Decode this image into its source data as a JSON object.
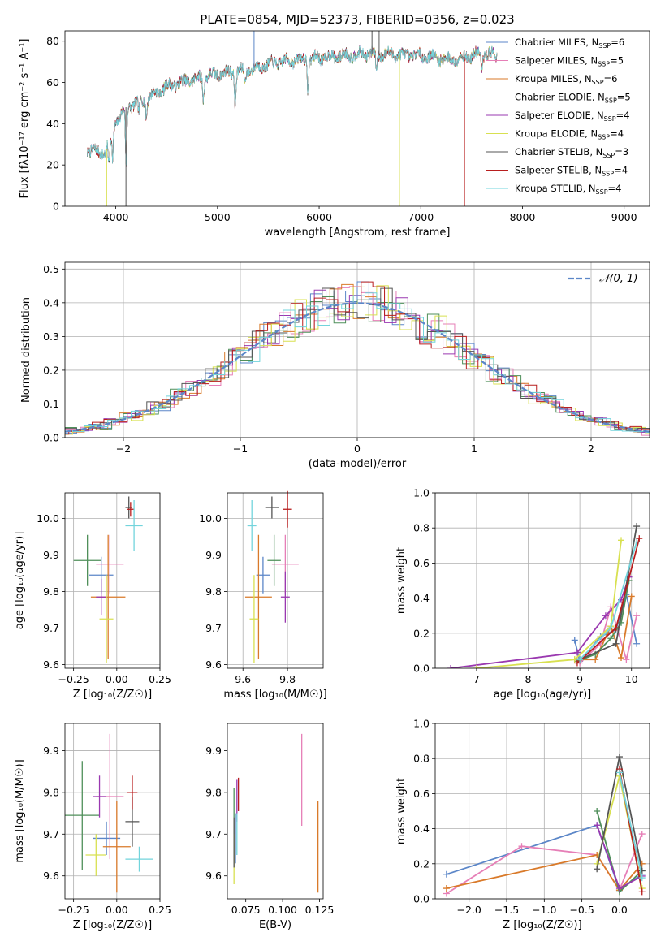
{
  "chart_data": [
    {
      "id": "spectrum",
      "type": "line",
      "title": "PLATE=0854, MJD=52373, FIBERID=0356, z=0.023",
      "xlabel": "wavelength [Angstrom, rest frame]",
      "ylabel": "Flux [fλ10⁻¹⁷ erg cm⁻² s⁻¹ A⁻¹]",
      "xlim": [
        3500,
        9250
      ],
      "ylim": [
        0,
        85
      ],
      "xticks": [
        4000,
        5000,
        6000,
        7000,
        8000,
        9000
      ],
      "yticks": [
        0,
        20,
        40,
        60,
        80
      ],
      "grid": false,
      "legend_position": "top-right",
      "continuum_anchors": [
        [
          3720,
          27
        ],
        [
          3900,
          26
        ],
        [
          3990,
          40
        ],
        [
          4100,
          48
        ],
        [
          4300,
          52
        ],
        [
          4500,
          58
        ],
        [
          4800,
          62
        ],
        [
          5000,
          64
        ],
        [
          5300,
          66
        ],
        [
          5600,
          70
        ],
        [
          6000,
          72
        ],
        [
          6500,
          74
        ],
        [
          7000,
          73
        ],
        [
          7300,
          71
        ],
        [
          7600,
          74
        ],
        [
          8000,
          72
        ],
        [
          8500,
          70
        ],
        [
          9000,
          68
        ],
        [
          9200,
          66
        ]
      ],
      "absorption_lines": [
        [
          3934,
          12
        ],
        [
          3969,
          14
        ],
        [
          4102,
          30
        ],
        [
          4227,
          6
        ],
        [
          4300,
          8
        ],
        [
          4861,
          10
        ],
        [
          5175,
          16
        ],
        [
          5270,
          6
        ],
        [
          5890,
          14
        ],
        [
          6563,
          8
        ],
        [
          7600,
          8
        ],
        [
          8542,
          12
        ]
      ],
      "series": [
        {
          "name": "Chabrier MILES, N",
          "sub": "SSP",
          "suffix": "=6",
          "color": "#5b86c8"
        },
        {
          "name": "Salpeter MILES, N",
          "sub": "SSP",
          "suffix": "=5",
          "color": "#e67fb7"
        },
        {
          "name": "Kroupa MILES, N",
          "sub": "SSP",
          "suffix": "=6",
          "color": "#d97a2a"
        },
        {
          "name": "Chabrier ELODIE, N",
          "sub": "SSP",
          "suffix": "=5",
          "color": "#4f8f5a"
        },
        {
          "name": "Salpeter ELODIE, N",
          "sub": "SSP",
          "suffix": "=4",
          "color": "#9a38b0"
        },
        {
          "name": "Kroupa ELODIE, N",
          "sub": "SSP",
          "suffix": "=4",
          "color": "#d8e050"
        },
        {
          "name": "Chabrier STELIB, N",
          "sub": "SSP",
          "suffix": "=3",
          "color": "#555555"
        },
        {
          "name": "Salpeter STELIB, N",
          "sub": "SSP",
          "suffix": "=4",
          "color": "#b81e1e"
        },
        {
          "name": "Kroupa STELIB, N",
          "sub": "SSP",
          "suffix": "=4",
          "color": "#72d4dc"
        }
      ]
    },
    {
      "id": "residuals",
      "type": "bar",
      "xlabel": "(data-model)/error",
      "ylabel": "Normed distribution",
      "xlim": [
        -2.5,
        2.5
      ],
      "ylim": [
        0,
        0.52
      ],
      "xticks": [
        -2,
        -1,
        0,
        1,
        2
      ],
      "yticks": [
        0.0,
        0.1,
        0.2,
        0.3,
        0.4,
        0.5
      ],
      "grid": true,
      "bin_width": 0.1,
      "legend": "𝒩(0, 1)",
      "legend_position": "top-right",
      "model_color": "#5b86c8"
    },
    {
      "id": "z_vs_age",
      "type": "scatter",
      "xlabel": "Z [log₁₀(Z/Z☉)]",
      "ylabel": "age  [log₁₀(age/yr)]",
      "xlim": [
        -0.3,
        0.25
      ],
      "ylim": [
        9.59,
        10.07
      ],
      "xticks": [
        -0.25,
        0.0,
        0.25
      ],
      "yticks": [
        9.6,
        9.7,
        9.8,
        9.9,
        10.0
      ],
      "grid": true,
      "points": [
        {
          "x": -0.09,
          "y": 9.845,
          "xerr": 0.07,
          "yerr": 0.05,
          "color": "#5b86c8"
        },
        {
          "x": -0.04,
          "y": 9.875,
          "xerr": 0.08,
          "yerr": 0.08,
          "color": "#e67fb7"
        },
        {
          "x": -0.05,
          "y": 9.785,
          "xerr": 0.1,
          "yerr": 0.17,
          "color": "#d97a2a"
        },
        {
          "x": -0.17,
          "y": 9.885,
          "xerr": 0.08,
          "yerr": 0.07,
          "color": "#4f8f5a"
        },
        {
          "x": -0.09,
          "y": 9.785,
          "xerr": 0.03,
          "yerr": 0.05,
          "color": "#9a38b0"
        },
        {
          "x": -0.06,
          "y": 9.725,
          "xerr": 0.04,
          "yerr": 0.12,
          "color": "#d8e050"
        },
        {
          "x": 0.07,
          "y": 10.03,
          "xerr": 0.02,
          "yerr": 0.03,
          "color": "#555555"
        },
        {
          "x": 0.08,
          "y": 10.025,
          "xerr": 0.02,
          "yerr": 0.02,
          "color": "#b81e1e"
        },
        {
          "x": 0.1,
          "y": 9.98,
          "xerr": 0.05,
          "yerr": 0.07,
          "color": "#72d4dc"
        }
      ]
    },
    {
      "id": "mass_vs_age",
      "type": "scatter",
      "xlabel": "mass [log₁₀(M/M☉)]",
      "ylabel": "",
      "xlim": [
        9.53,
        9.96
      ],
      "ylim": [
        9.59,
        10.07
      ],
      "xticks": [
        9.6,
        9.8
      ],
      "yticks": [
        9.6,
        9.7,
        9.8,
        9.9,
        10.0
      ],
      "grid": true,
      "points": [
        {
          "x": 9.69,
          "y": 9.845,
          "xerr": 0.03,
          "yerr": 0.05,
          "color": "#5b86c8"
        },
        {
          "x": 9.79,
          "y": 9.875,
          "xerr": 0.06,
          "yerr": 0.08,
          "color": "#e67fb7"
        },
        {
          "x": 9.67,
          "y": 9.785,
          "xerr": 0.06,
          "yerr": 0.17,
          "color": "#d97a2a"
        },
        {
          "x": 9.74,
          "y": 9.885,
          "xerr": 0.03,
          "yerr": 0.07,
          "color": "#4f8f5a"
        },
        {
          "x": 9.79,
          "y": 9.785,
          "xerr": 0.02,
          "yerr": 0.07,
          "color": "#9a38b0"
        },
        {
          "x": 9.65,
          "y": 9.725,
          "xerr": 0.02,
          "yerr": 0.12,
          "color": "#d8e050"
        },
        {
          "x": 9.73,
          "y": 10.03,
          "xerr": 0.03,
          "yerr": 0.03,
          "color": "#555555"
        },
        {
          "x": 9.8,
          "y": 10.025,
          "xerr": 0.02,
          "yerr": 0.05,
          "color": "#b81e1e"
        },
        {
          "x": 9.64,
          "y": 9.98,
          "xerr": 0.02,
          "yerr": 0.07,
          "color": "#72d4dc"
        }
      ]
    },
    {
      "id": "age_weights",
      "type": "line",
      "xlabel": "age  [log₁₀(age/yr)]",
      "ylabel": "mass weight",
      "xlim": [
        6.2,
        10.35
      ],
      "ylim": [
        0,
        1.0
      ],
      "xticks": [
        7,
        8,
        9,
        10
      ],
      "yticks": [
        0.0,
        0.2,
        0.4,
        0.6,
        0.8,
        1.0
      ],
      "grid": true,
      "series": [
        {
          "color": "#5b86c8",
          "x": [
            8.9,
            9.0,
            9.4,
            9.7,
            9.9,
            10.1
          ],
          "y": [
            0.16,
            0.04,
            0.18,
            0.22,
            0.42,
            0.14
          ]
        },
        {
          "color": "#e67fb7",
          "x": [
            9.0,
            9.4,
            9.6,
            9.9,
            10.1
          ],
          "y": [
            0.03,
            0.14,
            0.35,
            0.05,
            0.3
          ]
        },
        {
          "color": "#d97a2a",
          "x": [
            8.9,
            9.3,
            9.6,
            9.8,
            10.0
          ],
          "y": [
            0.05,
            0.05,
            0.24,
            0.06,
            0.41
          ]
        },
        {
          "color": "#4f8f5a",
          "x": [
            8.95,
            9.3,
            9.6,
            9.8,
            9.95
          ],
          "y": [
            0.04,
            0.08,
            0.17,
            0.26,
            0.5
          ]
        },
        {
          "color": "#9a38b0",
          "x": [
            6.5,
            8.95,
            9.5,
            9.8,
            9.95
          ],
          "y": [
            0.0,
            0.09,
            0.3,
            0.39,
            0.52
          ]
        },
        {
          "color": "#d8e050",
          "x": [
            7.0,
            8.9,
            9.6,
            9.8
          ],
          "y": [
            0.0,
            0.05,
            0.24,
            0.73
          ]
        },
        {
          "color": "#555555",
          "x": [
            9.0,
            9.7,
            10.1
          ],
          "y": [
            0.05,
            0.14,
            0.81
          ]
        },
        {
          "color": "#b81e1e",
          "x": [
            8.95,
            9.7,
            10.15
          ],
          "y": [
            0.03,
            0.23,
            0.74
          ]
        },
        {
          "color": "#72d4dc",
          "x": [
            9.0,
            9.6,
            10.1
          ],
          "y": [
            0.05,
            0.23,
            0.72
          ]
        }
      ]
    },
    {
      "id": "z_vs_mass",
      "type": "scatter",
      "xlabel": "Z [log₁₀(Z/Z☉)]",
      "ylabel": "mass [log₁₀(M/M☉)]",
      "xlim": [
        -0.3,
        0.25
      ],
      "ylim": [
        9.545,
        9.965
      ],
      "xticks": [
        -0.25,
        0.0,
        0.25
      ],
      "yticks": [
        9.6,
        9.7,
        9.8,
        9.9
      ],
      "grid": true,
      "points": [
        {
          "x": -0.06,
          "y": 9.69,
          "xerr": 0.08,
          "yerr": 0.04,
          "color": "#5b86c8"
        },
        {
          "x": -0.04,
          "y": 9.79,
          "xerr": 0.08,
          "yerr": 0.15,
          "color": "#e67fb7"
        },
        {
          "x": 0.0,
          "y": 9.67,
          "xerr": 0.08,
          "yerr": 0.11,
          "color": "#d97a2a"
        },
        {
          "x": -0.2,
          "y": 9.745,
          "xerr": 0.1,
          "yerr": 0.13,
          "color": "#4f8f5a"
        },
        {
          "x": -0.1,
          "y": 9.79,
          "xerr": 0.04,
          "yerr": 0.05,
          "color": "#9a38b0"
        },
        {
          "x": -0.12,
          "y": 9.65,
          "xerr": 0.06,
          "yerr": 0.05,
          "color": "#d8e050"
        },
        {
          "x": 0.09,
          "y": 9.73,
          "xerr": 0.04,
          "yerr": 0.06,
          "color": "#555555"
        },
        {
          "x": 0.09,
          "y": 9.8,
          "xerr": 0.03,
          "yerr": 0.04,
          "color": "#b81e1e"
        },
        {
          "x": 0.13,
          "y": 9.64,
          "xerr": 0.08,
          "yerr": 0.03,
          "color": "#72d4dc"
        }
      ]
    },
    {
      "id": "ebv_vs_mass",
      "type": "scatter",
      "xlabel": "E(B-V)",
      "ylabel": "",
      "xlim": [
        0.0625,
        0.1275
      ],
      "ylim": [
        9.545,
        9.965
      ],
      "xticks": [
        0.075,
        0.1,
        0.125
      ],
      "yticks": [
        9.6,
        9.7,
        9.8,
        9.9
      ],
      "grid": false,
      "points": [
        {
          "x": 0.068,
          "y": 9.69,
          "yerr": 0.06,
          "color": "#5b86c8"
        },
        {
          "x": 0.113,
          "y": 9.83,
          "yerr": 0.11,
          "color": "#e67fb7"
        },
        {
          "x": 0.124,
          "y": 9.67,
          "yerr": 0.11,
          "color": "#d97a2a"
        },
        {
          "x": 0.067,
          "y": 9.72,
          "yerr": 0.09,
          "color": "#4f8f5a"
        },
        {
          "x": 0.069,
          "y": 9.78,
          "yerr": 0.05,
          "color": "#9a38b0"
        },
        {
          "x": 0.067,
          "y": 9.64,
          "yerr": 0.06,
          "color": "#d8e050"
        },
        {
          "x": 0.067,
          "y": 9.68,
          "yerr": 0.06,
          "color": "#555555"
        },
        {
          "x": 0.07,
          "y": 9.795,
          "yerr": 0.04,
          "color": "#b81e1e"
        },
        {
          "x": 0.069,
          "y": 9.7,
          "yerr": 0.05,
          "color": "#72d4dc"
        }
      ]
    },
    {
      "id": "z_weights",
      "type": "line",
      "xlabel": "Z [log₁₀(Z/Z☉)]",
      "ylabel": "mass weight",
      "xlim": [
        -2.45,
        0.4
      ],
      "ylim": [
        0,
        1.0
      ],
      "xticks": [
        -2.0,
        -1.5,
        -1.0,
        -0.5,
        0.0
      ],
      "yticks": [
        0.0,
        0.2,
        0.4,
        0.6,
        0.8,
        1.0
      ],
      "grid": true,
      "series": [
        {
          "color": "#5b86c8",
          "x": [
            -2.3,
            -0.3,
            0.0,
            0.3
          ],
          "y": [
            0.14,
            0.42,
            0.05,
            0.14
          ]
        },
        {
          "color": "#e67fb7",
          "x": [
            -2.3,
            -1.3,
            -0.3,
            0.0,
            0.3
          ],
          "y": [
            0.03,
            0.3,
            0.25,
            0.05,
            0.37
          ]
        },
        {
          "color": "#d97a2a",
          "x": [
            -2.3,
            -0.3,
            0.0,
            0.3
          ],
          "y": [
            0.06,
            0.25,
            0.05,
            0.2
          ]
        },
        {
          "color": "#4f8f5a",
          "x": [
            -0.3,
            0.0,
            0.3
          ],
          "y": [
            0.5,
            0.04,
            0.16
          ]
        },
        {
          "color": "#9a38b0",
          "x": [
            -0.3,
            0.0,
            0.3
          ],
          "y": [
            0.42,
            0.06,
            0.13
          ]
        },
        {
          "color": "#d8e050",
          "x": [
            -0.3,
            0.0,
            0.3
          ],
          "y": [
            0.2,
            0.7,
            0.06
          ]
        },
        {
          "color": "#555555",
          "x": [
            -0.3,
            0.0,
            0.3
          ],
          "y": [
            0.17,
            0.81,
            0.16
          ]
        },
        {
          "color": "#b81e1e",
          "x": [
            0.0,
            0.3
          ],
          "y": [
            0.74,
            0.04
          ]
        },
        {
          "color": "#72d4dc",
          "x": [
            0.0,
            0.3
          ],
          "y": [
            0.72,
            0.12
          ]
        }
      ]
    }
  ]
}
